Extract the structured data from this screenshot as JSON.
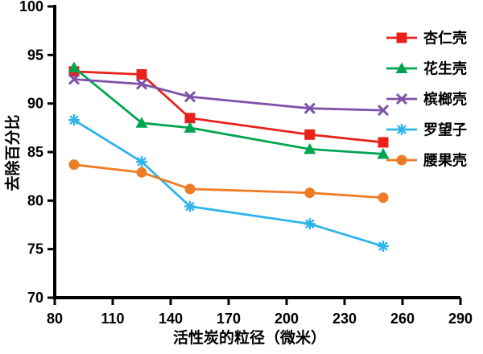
{
  "chart_data": {
    "type": "line",
    "title": "",
    "xlabel": "活性炭的粒径（微米）",
    "ylabel": "去除百分比",
    "xlim": [
      80,
      290
    ],
    "ylim": [
      70,
      100
    ],
    "xticks": [
      80,
      110,
      140,
      170,
      200,
      230,
      260,
      290
    ],
    "yticks": [
      70,
      75,
      80,
      85,
      90,
      95,
      100
    ],
    "grid": false,
    "legend_position": "right",
    "axis_color": "#000000",
    "x": [
      90,
      125,
      150,
      212,
      250
    ],
    "series": [
      {
        "name": "杏仁壳",
        "color": "#e8211d",
        "marker": "square",
        "values": [
          93.3,
          93.0,
          88.5,
          86.8,
          86.0
        ]
      },
      {
        "name": "花生壳",
        "color": "#00a550",
        "marker": "triangle",
        "values": [
          93.7,
          88.0,
          87.5,
          85.3,
          84.8
        ]
      },
      {
        "name": "槟榔壳",
        "color": "#7d52a8",
        "marker": "x",
        "values": [
          92.5,
          92.0,
          90.7,
          89.5,
          89.3
        ]
      },
      {
        "name": "罗望子",
        "color": "#2fb4e9",
        "marker": "asterisk",
        "values": [
          88.3,
          84.0,
          79.4,
          77.6,
          75.3
        ]
      },
      {
        "name": "腰果壳",
        "color": "#ee7c26",
        "marker": "circle",
        "values": [
          83.7,
          82.9,
          81.2,
          80.8,
          80.3
        ]
      }
    ]
  }
}
